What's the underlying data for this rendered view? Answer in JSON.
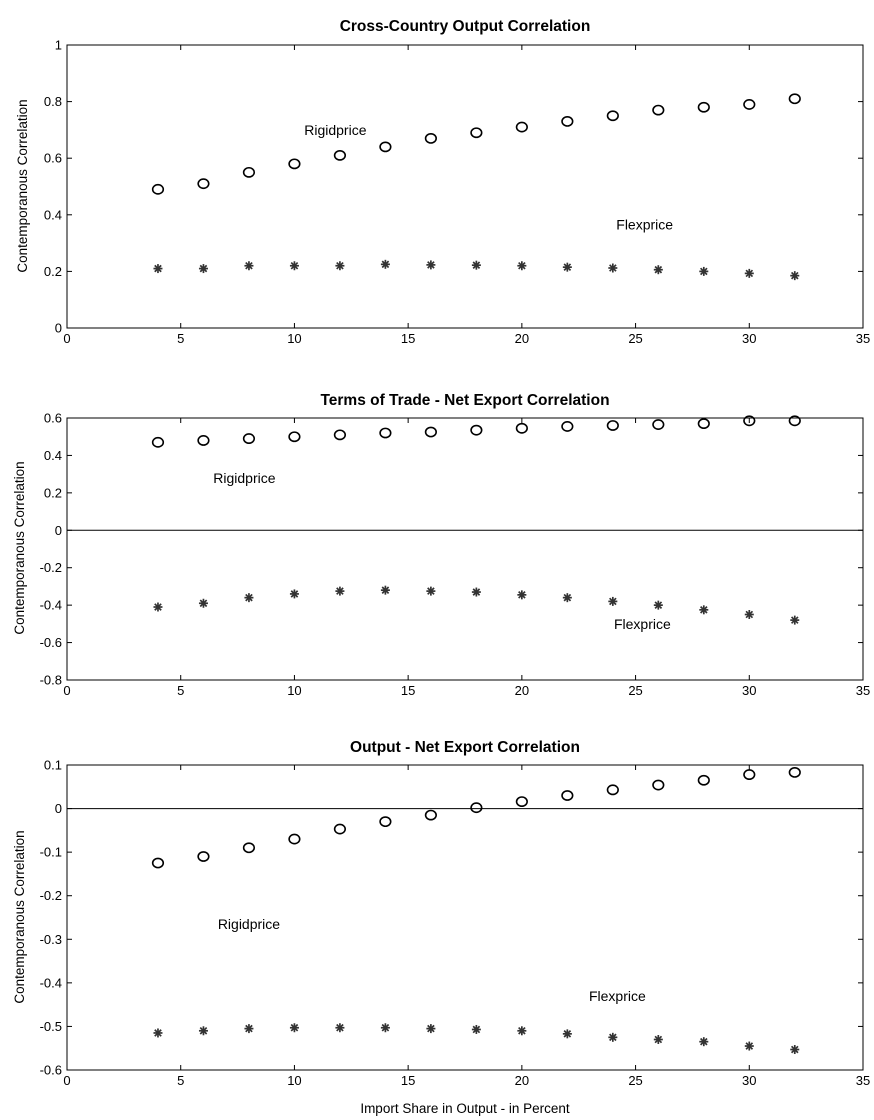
{
  "xlabel": "Import Share in Output - in Percent",
  "chart_data": [
    {
      "type": "scatter",
      "title": "Cross-Country Output Correlation",
      "xlabel": "",
      "ylabel": "Contemporanous Correlation",
      "xlim": [
        0,
        35
      ],
      "ylim": [
        0,
        1
      ],
      "xticks": [
        0,
        5,
        10,
        15,
        20,
        25,
        30,
        35
      ],
      "yticks": [
        0,
        0.2,
        0.4,
        0.6,
        0.8,
        1
      ],
      "ytick_labels": [
        "0",
        "0.2",
        "0.4",
        "0.6",
        "0.8",
        "1"
      ],
      "zero_line": false,
      "x": [
        4,
        6,
        8,
        10,
        12,
        14,
        16,
        18,
        20,
        22,
        24,
        26,
        28,
        30,
        32
      ],
      "series": [
        {
          "marker": "circle",
          "values": [
            0.49,
            0.51,
            0.55,
            0.58,
            0.61,
            0.64,
            0.67,
            0.69,
            0.71,
            0.73,
            0.75,
            0.77,
            0.78,
            0.79,
            0.81
          ]
        },
        {
          "marker": "star",
          "values": [
            0.21,
            0.21,
            0.22,
            0.22,
            0.22,
            0.225,
            0.223,
            0.222,
            0.22,
            0.215,
            0.212,
            0.206,
            0.2,
            0.193,
            0.185
          ]
        }
      ],
      "annotations": [
        {
          "text": "Rigidprice",
          "x": 11.8,
          "y": 0.7
        },
        {
          "text": "Flexprice",
          "x": 25.4,
          "y": 0.365
        }
      ]
    },
    {
      "type": "scatter",
      "title": "Terms of Trade - Net Export Correlation",
      "xlabel": "",
      "ylabel": "Contemporanous Correlation",
      "xlim": [
        0,
        35
      ],
      "ylim": [
        -0.8,
        0.6
      ],
      "xticks": [
        0,
        5,
        10,
        15,
        20,
        25,
        30,
        35
      ],
      "yticks": [
        -0.8,
        -0.6,
        -0.4,
        -0.2,
        0,
        0.2,
        0.4,
        0.6
      ],
      "ytick_labels": [
        "-0.8",
        "-0.6",
        "-0.4",
        "-0.2",
        "0",
        "0.2",
        "0.4",
        "0.6"
      ],
      "zero_line": true,
      "x": [
        4,
        6,
        8,
        10,
        12,
        14,
        16,
        18,
        20,
        22,
        24,
        26,
        28,
        30,
        32
      ],
      "series": [
        {
          "marker": "circle",
          "values": [
            0.47,
            0.48,
            0.49,
            0.5,
            0.51,
            0.52,
            0.525,
            0.535,
            0.545,
            0.555,
            0.56,
            0.565,
            0.57,
            0.585,
            0.585
          ]
        },
        {
          "marker": "star",
          "values": [
            -0.41,
            -0.39,
            -0.36,
            -0.34,
            -0.325,
            -0.32,
            -0.325,
            -0.33,
            -0.345,
            -0.36,
            -0.38,
            -0.4,
            -0.425,
            -0.45,
            -0.48
          ]
        }
      ],
      "annotations": [
        {
          "text": "Rigidprice",
          "x": 7.8,
          "y": 0.28
        },
        {
          "text": "Flexprice",
          "x": 25.3,
          "y": -0.5
        }
      ]
    },
    {
      "type": "scatter",
      "title": "Output - Net Export Correlation",
      "xlabel": "Import Share in Output - in Percent",
      "ylabel": "Contemporanous Correlation",
      "xlim": [
        0,
        35
      ],
      "ylim": [
        -0.6,
        0.1
      ],
      "xticks": [
        0,
        5,
        10,
        15,
        20,
        25,
        30,
        35
      ],
      "yticks": [
        -0.6,
        -0.5,
        -0.4,
        -0.3,
        -0.2,
        -0.1,
        0,
        0.1
      ],
      "ytick_labels": [
        "-0.6",
        "-0.5",
        "-0.4",
        "-0.3",
        "-0.2",
        "-0.1",
        "0",
        "0.1"
      ],
      "zero_line": true,
      "x": [
        4,
        6,
        8,
        10,
        12,
        14,
        16,
        18,
        20,
        22,
        24,
        26,
        28,
        30,
        32
      ],
      "series": [
        {
          "marker": "circle",
          "values": [
            -0.125,
            -0.11,
            -0.09,
            -0.07,
            -0.047,
            -0.03,
            -0.015,
            0.002,
            0.016,
            0.03,
            0.043,
            0.054,
            0.065,
            0.078,
            0.083
          ]
        },
        {
          "marker": "star",
          "values": [
            -0.515,
            -0.51,
            -0.505,
            -0.503,
            -0.503,
            -0.503,
            -0.505,
            -0.507,
            -0.51,
            -0.517,
            -0.525,
            -0.53,
            -0.535,
            -0.545,
            -0.553
          ]
        }
      ],
      "annotations": [
        {
          "text": "Rigidprice",
          "x": 8,
          "y": -0.265
        },
        {
          "text": "Flexprice",
          "x": 24.2,
          "y": -0.43
        }
      ]
    }
  ]
}
